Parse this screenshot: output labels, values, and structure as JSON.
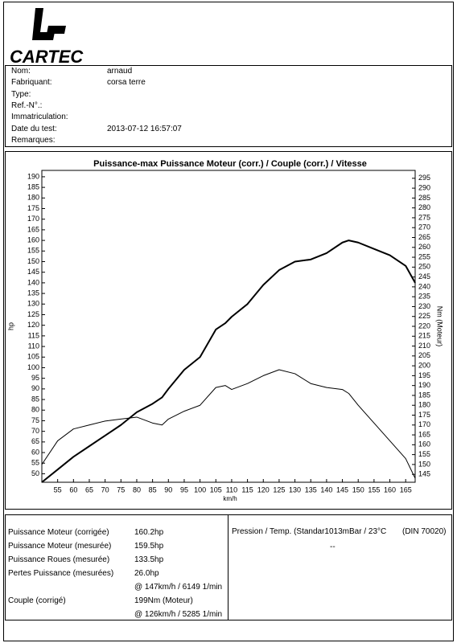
{
  "logo": "CARTEC",
  "info": [
    {
      "label": "Nom:",
      "value": "arnaud"
    },
    {
      "label": "Fabriquant:",
      "value": "corsa terre"
    },
    {
      "label": "Type:"
    },
    {
      "label": "Ref.-N°.:"
    },
    {
      "label": "Immatriculation:"
    },
    {
      "label": "Date du test:",
      "value": "2013-07-12 16:57:07"
    },
    {
      "label": "Remarques:"
    }
  ],
  "chart_data": {
    "type": "line",
    "title": "Puissance-max Puissance Moteur (corr.) / Couple (corr.) / Vitesse",
    "x_label": "km/h",
    "y_label": "hp",
    "y2_label": "Nm (Moteur)",
    "x": [
      50,
      55,
      60,
      65,
      70,
      75,
      80,
      85,
      88,
      90,
      95,
      100,
      105,
      108,
      110,
      115,
      120,
      125,
      130,
      135,
      140,
      145,
      147,
      150,
      155,
      160,
      165,
      168
    ],
    "series": [
      {
        "name": "Puissance Moteur (corr.)",
        "color": "#000000",
        "width": 2,
        "values": [
          46,
          52,
          58,
          63,
          68,
          73,
          79,
          83,
          86,
          90,
          99,
          105,
          118,
          121,
          124,
          130,
          139,
          146,
          150,
          151,
          154,
          159,
          160,
          159,
          156,
          153,
          148,
          140
        ]
      },
      {
        "name": "Couple (corr.)",
        "color": "#000000",
        "width": 1,
        "axis": "y2",
        "values": [
          150,
          162,
          168,
          170,
          172,
          173,
          174,
          171,
          170,
          173,
          177,
          180,
          189,
          190,
          188,
          191,
          195,
          198,
          196,
          191,
          189,
          188,
          186,
          180,
          171,
          162,
          153,
          143
        ]
      }
    ],
    "xlim": [
      50,
      168
    ],
    "ylim": [
      46,
      193
    ],
    "y2lim": [
      141,
      299
    ],
    "xticks": [
      55,
      60,
      65,
      70,
      75,
      80,
      85,
      90,
      95,
      100,
      105,
      110,
      115,
      120,
      125,
      130,
      135,
      140,
      145,
      150,
      155,
      160,
      165
    ],
    "yticks": [
      50,
      55,
      60,
      65,
      70,
      75,
      80,
      85,
      90,
      95,
      100,
      105,
      110,
      115,
      120,
      125,
      130,
      135,
      140,
      145,
      150,
      155,
      160,
      165,
      170,
      175,
      180,
      185,
      190
    ],
    "y2ticks": [
      145,
      150,
      155,
      160,
      165,
      170,
      175,
      180,
      185,
      190,
      195,
      200,
      205,
      210,
      215,
      220,
      225,
      230,
      235,
      240,
      245,
      250,
      255,
      260,
      265,
      270,
      275,
      280,
      285,
      290,
      295
    ],
    "grid": false
  },
  "results": {
    "rows": [
      {
        "label": "Puissance Moteur (corrigée)",
        "value": "160.2hp"
      },
      {
        "label": "Puissance Moteur (mesurée)",
        "value": "159.5hp"
      },
      {
        "label": "Puissance Roues (mesurée)",
        "value": "133.5hp"
      },
      {
        "label": "Pertes Puissance (mesurées)",
        "value": "26.0hp"
      },
      {
        "value": "@ 147km/h / 6149 1/min"
      },
      {
        "label": "Couple (corrigé)",
        "value": "199Nm (Moteur)"
      },
      {
        "value": "@ 126km/h / 5285 1/min"
      }
    ],
    "conditions": "Pression / Temp. (Standar1013mBar / 23°C",
    "norm": "(DIN 70020)",
    "conditions_value": "--"
  }
}
